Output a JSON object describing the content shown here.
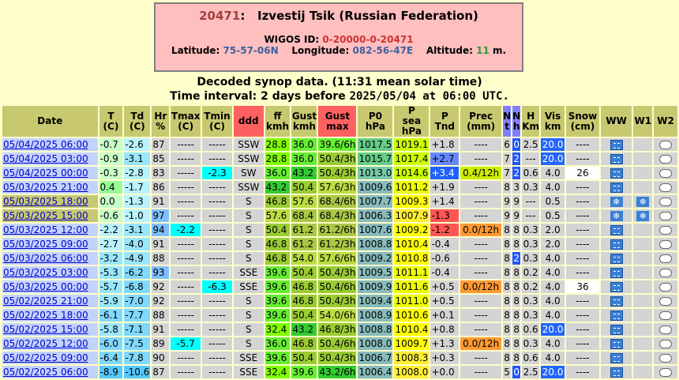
{
  "station": {
    "id": "20471",
    "name": "Izvestij Tsik (Russian Federation)",
    "wigos_label": "WIGOS ID:",
    "wigos_id": "0-20000-0-20471",
    "lat_label": "Latitude:",
    "lat": "75-57-06N",
    "lon_label": "Longitude:",
    "lon": "082-56-47E",
    "alt_label": "Altitude:",
    "alt": "11",
    "alt_unit": "m."
  },
  "header": {
    "decoded": "Decoded synop data. (11:31 mean solar time)",
    "interval_prefix": "Time interval: 2 days before",
    "interval_time": "2025/05/04 at 06:00 UTC."
  },
  "colors": {
    "header": "#c8c871",
    "header_red": "#ff6060",
    "header_blue": "#7f7fff",
    "night_date": "#c8c871",
    "day_date": "#c3d3ff",
    "cell": "#d4d4d4",
    "bg": "#ffffcc"
  },
  "table": {
    "columns": [
      "Date",
      "T (C)",
      "Td (C)",
      "Hr %",
      "Tmax (C)",
      "Tmin (C)",
      "ddd",
      "ff kmh",
      "Gust kmh",
      "Gust max",
      "P0 hPa",
      "P sea hPa",
      "P Tnd",
      "Prec (mm)",
      "N t",
      "N h",
      "H Km",
      "Vis km",
      "Snow (cm)",
      "WW",
      "W1",
      "W2"
    ],
    "rows": [
      {
        "date": "05/04/2025",
        "time": "06:00",
        "t": "-0.7",
        "td": "-2.6",
        "hr": "87",
        "tmax": "-----",
        "tmin": "-----",
        "ddd": "SSW",
        "ff": "28.8",
        "gust": "36.0",
        "gmax": "39.6/6h",
        "p0": "1017.5",
        "psea": "1019.1",
        "ptnd": "+1.8",
        "prec": "----",
        "nt": "6",
        "nh": "0",
        "h": "2.5",
        "vis": "20.0",
        "snow": "----",
        "ww": "rain-shower-icon",
        "w1": "",
        "w2": "cloud-icon",
        "day": true
      },
      {
        "date": "05/04/2025",
        "time": "03:00",
        "t": "-0.9",
        "td": "-3.1",
        "hr": "85",
        "tmax": "-----",
        "tmin": "-----",
        "ddd": "SSW",
        "ff": "28.8",
        "gust": "36.0",
        "gmax": "50.4/3h",
        "p0": "1015.7",
        "psea": "1017.4",
        "ptnd": "+2.7",
        "prec": "----",
        "nt": "7",
        "nh": "2",
        "h": "---",
        "vis": "20.0",
        "snow": "----",
        "ww": "rain-shower-icon",
        "w1": "",
        "w2": "cloud-icon",
        "day": true
      },
      {
        "date": "05/04/2025",
        "time": "00:00",
        "t": "-0.3",
        "td": "-2.8",
        "hr": "83",
        "tmax": "-----",
        "tmin": "-2.3",
        "ddd": "SW",
        "ff": "36.0",
        "gust": "43.2",
        "gmax": "50.4/3h",
        "p0": "1013.0",
        "psea": "1014.6",
        "ptnd": "+3.4",
        "prec": "0.4/12h",
        "nt": "7",
        "nh": "2",
        "h": "0.6",
        "vis": "4.0",
        "snow": "26",
        "ww": "rain-shower-icon",
        "w1": "",
        "w2": "cloud-icon",
        "day": true
      },
      {
        "date": "05/03/2025",
        "time": "21:00",
        "t": "0.4",
        "td": "-1.7",
        "hr": "86",
        "tmax": "-----",
        "tmin": "-----",
        "ddd": "SSW",
        "ff": "43.2",
        "gust": "50.4",
        "gmax": "57.6/3h",
        "p0": "1009.6",
        "psea": "1011.2",
        "ptnd": "+1.9",
        "prec": "----",
        "nt": "8",
        "nh": "3",
        "h": "0.3",
        "vis": "4.0",
        "snow": "----",
        "ww": "rain-shower-icon",
        "w1": "",
        "w2": "cloud-icon",
        "day": true
      },
      {
        "date": "05/03/2025",
        "time": "18:00",
        "t": "0.0",
        "td": "-1.3",
        "hr": "91",
        "tmax": "-----",
        "tmin": "-----",
        "ddd": "S",
        "ff": "46.8",
        "gust": "57.6",
        "gmax": "68.4/6h",
        "p0": "1007.7",
        "psea": "1009.3",
        "ptnd": "+1.4",
        "prec": "----",
        "nt": "9",
        "nh": "9",
        "h": "---",
        "vis": "0.5",
        "snow": "----",
        "ww": "snow-icon",
        "w1": "snow-icon",
        "w2": "cloud-icon",
        "day": false
      },
      {
        "date": "05/03/2025",
        "time": "15:00",
        "t": "-0.6",
        "td": "-1.0",
        "hr": "97",
        "tmax": "-----",
        "tmin": "-----",
        "ddd": "S",
        "ff": "57.6",
        "gust": "68.4",
        "gmax": "68.4/3h",
        "p0": "1006.3",
        "psea": "1007.9",
        "ptnd": "-1.3",
        "prec": "----",
        "nt": "9",
        "nh": "9",
        "h": "---",
        "vis": "0.5",
        "snow": "----",
        "ww": "snow-icon",
        "w1": "snow-icon",
        "w2": "cloud-icon",
        "day": false
      },
      {
        "date": "05/03/2025",
        "time": "12:00",
        "t": "-2.2",
        "td": "-3.1",
        "hr": "94",
        "tmax": "-2.2",
        "tmin": "-----",
        "ddd": "S",
        "ff": "50.4",
        "gust": "61.2",
        "gmax": "61.2/6h",
        "p0": "1007.6",
        "psea": "1009.2",
        "ptnd": "-1.2",
        "prec": "0.0/12h",
        "nt": "8",
        "nh": "8",
        "h": "0.3",
        "vis": "2.0",
        "snow": "----",
        "ww": "rain-shower-icon",
        "w1": "",
        "w2": "cloud-icon",
        "day": true
      },
      {
        "date": "05/03/2025",
        "time": "09:00",
        "t": "-2.7",
        "td": "-4.0",
        "hr": "91",
        "tmax": "-----",
        "tmin": "-----",
        "ddd": "S",
        "ff": "46.8",
        "gust": "61.2",
        "gmax": "61.2/3h",
        "p0": "1008.8",
        "psea": "1010.4",
        "ptnd": "-0.4",
        "prec": "----",
        "nt": "8",
        "nh": "8",
        "h": "0.3",
        "vis": "2.0",
        "snow": "----",
        "ww": "rain-shower-icon",
        "w1": "",
        "w2": "cloud-icon",
        "day": true
      },
      {
        "date": "05/03/2025",
        "time": "06:00",
        "t": "-3.2",
        "td": "-4.9",
        "hr": "88",
        "tmax": "-----",
        "tmin": "-----",
        "ddd": "S",
        "ff": "46.8",
        "gust": "54.0",
        "gmax": "57.6/6h",
        "p0": "1009.2",
        "psea": "1010.8",
        "ptnd": "-0.6",
        "prec": "----",
        "nt": "8",
        "nh": "2",
        "h": "0.3",
        "vis": "4.0",
        "snow": "----",
        "ww": "rain-shower-icon",
        "w1": "",
        "w2": "cloud-icon",
        "day": true
      },
      {
        "date": "05/03/2025",
        "time": "03:00",
        "t": "-5.3",
        "td": "-6.2",
        "hr": "93",
        "tmax": "-----",
        "tmin": "-----",
        "ddd": "SSE",
        "ff": "39.6",
        "gust": "50.4",
        "gmax": "50.4/3h",
        "p0": "1009.5",
        "psea": "1011.1",
        "ptnd": "-0.4",
        "prec": "----",
        "nt": "8",
        "nh": "8",
        "h": "0.2",
        "vis": "4.0",
        "snow": "----",
        "ww": "rain-shower-icon",
        "w1": "",
        "w2": "cloud-icon",
        "day": true
      },
      {
        "date": "05/03/2025",
        "time": "00:00",
        "t": "-5.7",
        "td": "-6.8",
        "hr": "92",
        "tmax": "-----",
        "tmin": "-6.3",
        "ddd": "SSE",
        "ff": "39.6",
        "gust": "46.8",
        "gmax": "50.4/6h",
        "p0": "1009.9",
        "psea": "1011.6",
        "ptnd": "+0.5",
        "prec": "0.0/12h",
        "nt": "8",
        "nh": "8",
        "h": "0.2",
        "vis": "4.0",
        "snow": "36",
        "ww": "rain-shower-icon",
        "w1": "",
        "w2": "cloud-icon",
        "day": true
      },
      {
        "date": "05/02/2025",
        "time": "21:00",
        "t": "-5.9",
        "td": "-7.0",
        "hr": "92",
        "tmax": "-----",
        "tmin": "-----",
        "ddd": "S",
        "ff": "39.6",
        "gust": "46.8",
        "gmax": "50.4/3h",
        "p0": "1009.4",
        "psea": "1011.0",
        "ptnd": "+0.5",
        "prec": "----",
        "nt": "8",
        "nh": "8",
        "h": "0.3",
        "vis": "4.0",
        "snow": "----",
        "ww": "rain-shower-icon",
        "w1": "",
        "w2": "cloud-icon",
        "day": true
      },
      {
        "date": "05/02/2025",
        "time": "18:00",
        "t": "-6.1",
        "td": "-7.7",
        "hr": "88",
        "tmax": "-----",
        "tmin": "-----",
        "ddd": "S",
        "ff": "39.6",
        "gust": "50.4",
        "gmax": "54.0/6h",
        "p0": "1008.9",
        "psea": "1010.6",
        "ptnd": "+0.1",
        "prec": "----",
        "nt": "8",
        "nh": "8",
        "h": "0.3",
        "vis": "4.0",
        "snow": "----",
        "ww": "rain-shower-icon",
        "w1": "",
        "w2": "cloud-icon",
        "day": true
      },
      {
        "date": "05/02/2025",
        "time": "15:00",
        "t": "-5.8",
        "td": "-7.1",
        "hr": "91",
        "tmax": "-----",
        "tmin": "-----",
        "ddd": "S",
        "ff": "32.4",
        "gust": "43.2",
        "gmax": "46.8/3h",
        "p0": "1008.8",
        "psea": "1010.4",
        "ptnd": "+0.8",
        "prec": "----",
        "nt": "8",
        "nh": "8",
        "h": "0.6",
        "vis": "20.0",
        "snow": "----",
        "ww": "rain-shower-icon",
        "w1": "",
        "w2": "cloud-icon",
        "day": true
      },
      {
        "date": "05/02/2025",
        "time": "12:00",
        "t": "-6.0",
        "td": "-7.5",
        "hr": "89",
        "tmax": "-5.7",
        "tmin": "-----",
        "ddd": "S",
        "ff": "36.0",
        "gust": "46.8",
        "gmax": "50.4/6h",
        "p0": "1008.0",
        "psea": "1009.7",
        "ptnd": "+1.3",
        "prec": "0.0/12h",
        "nt": "8",
        "nh": "8",
        "h": "0.3",
        "vis": "4.0",
        "snow": "----",
        "ww": "rain-shower-icon",
        "w1": "",
        "w2": "cloud-icon",
        "day": true
      },
      {
        "date": "05/02/2025",
        "time": "09:00",
        "t": "-6.4",
        "td": "-7.8",
        "hr": "90",
        "tmax": "-----",
        "tmin": "-----",
        "ddd": "SSE",
        "ff": "39.6",
        "gust": "50.4",
        "gmax": "50.4/3h",
        "p0": "1006.7",
        "psea": "1008.3",
        "ptnd": "+0.3",
        "prec": "----",
        "nt": "8",
        "nh": "8",
        "h": "0.6",
        "vis": "4.0",
        "snow": "----",
        "ww": "rain-shower-icon",
        "w1": "",
        "w2": "cloud-icon",
        "day": true
      },
      {
        "date": "05/02/2025",
        "time": "06:00",
        "t": "-8.9",
        "td": "-10.6",
        "hr": "87",
        "tmax": "-----",
        "tmin": "-----",
        "ddd": "SSE",
        "ff": "32.4",
        "gust": "39.6",
        "gmax": "43.2/6h",
        "p0": "1006.4",
        "psea": "1008.0",
        "ptnd": "+0.0",
        "prec": "----",
        "nt": "5",
        "nh": "0",
        "h": "2.5",
        "vis": "20.0",
        "snow": "----",
        "ww": "rain-shower-icon",
        "w1": "",
        "w2": "cloud-sun-icon",
        "day": true
      }
    ]
  }
}
